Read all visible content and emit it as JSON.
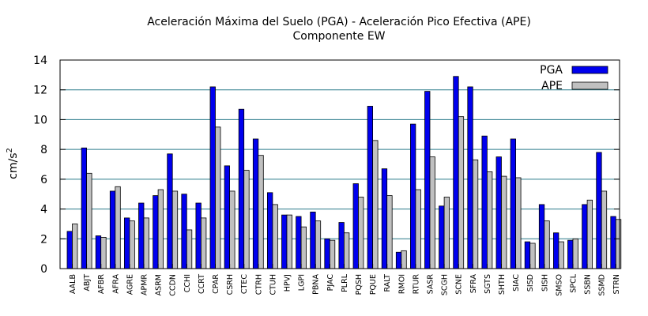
{
  "chart_data": {
    "type": "bar",
    "title": "Aceleración Máxima del Suelo (PGA) -  Aceleración Pico Efectiva (APE)",
    "subtitle": "Componente EW",
    "ylabel_base": "cm/s",
    "ylabel_sup": "2",
    "xlabel": "",
    "ylim": [
      0,
      14
    ],
    "yticks": [
      0,
      2,
      4,
      6,
      8,
      10,
      12,
      14
    ],
    "grid": "horizontal",
    "legend_position": "top-right",
    "categories": [
      "AALB",
      "ABJT",
      "AFBR",
      "AFRA",
      "AGRE",
      "APMR",
      "ASRM",
      "CCDN",
      "CCHI",
      "CCRT",
      "CPAR",
      "CSRH",
      "CTEC",
      "CTRH",
      "CTUH",
      "HPVJ",
      "LGPI",
      "PBNA",
      "PJAC",
      "PLRL",
      "PQSH",
      "PQUE",
      "RALT",
      "RMOI",
      "RTUR",
      "SASR",
      "SCGH",
      "SCNE",
      "SFRA",
      "SGTS",
      "SHTH",
      "SIAC",
      "SISD",
      "SISH",
      "SMSO",
      "SPCL",
      "SSBN",
      "SSMD",
      "STRN"
    ],
    "series": [
      {
        "name": "PGA",
        "color": "#0000ee",
        "values": [
          2.5,
          8.1,
          2.2,
          5.2,
          3.4,
          4.4,
          4.9,
          7.7,
          5.0,
          4.4,
          12.2,
          6.9,
          10.7,
          8.7,
          5.1,
          3.6,
          3.5,
          3.8,
          2.0,
          3.1,
          5.7,
          10.9,
          6.7,
          1.1,
          9.7,
          11.9,
          4.2,
          12.9,
          12.2,
          8.9,
          7.5,
          8.7,
          1.8,
          4.3,
          2.4,
          1.9,
          4.3,
          7.8,
          3.5
        ]
      },
      {
        "name": "APE",
        "color": "#c0c0c0",
        "values": [
          3.0,
          6.4,
          2.1,
          5.5,
          3.2,
          3.4,
          5.3,
          5.2,
          2.6,
          3.4,
          9.5,
          5.2,
          6.6,
          7.6,
          4.3,
          3.6,
          2.8,
          3.2,
          1.9,
          2.4,
          4.8,
          8.6,
          4.9,
          1.2,
          5.3,
          7.5,
          4.8,
          10.2,
          7.3,
          6.5,
          6.2,
          6.1,
          1.7,
          3.2,
          1.8,
          2.0,
          4.6,
          5.2,
          3.3
        ]
      }
    ]
  }
}
